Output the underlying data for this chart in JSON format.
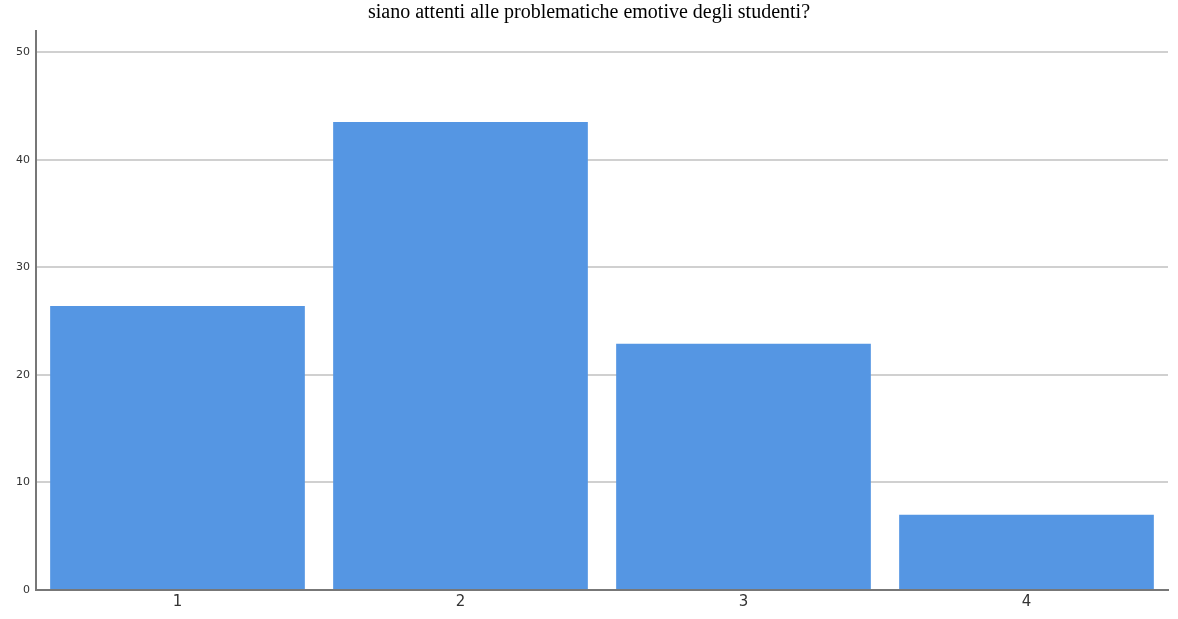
{
  "chart_data": {
    "type": "bar",
    "title": "siano attenti alle problematiche emotive degli studenti?",
    "categories": [
      "1",
      "2",
      "3",
      "4"
    ],
    "values": [
      26.4,
      43.5,
      22.9,
      7.0
    ],
    "color": "#5596e3",
    "ylim": [
      0,
      52
    ],
    "yticks": [
      0,
      10,
      20,
      30,
      40,
      50
    ],
    "grid": "y",
    "legend": false
  }
}
